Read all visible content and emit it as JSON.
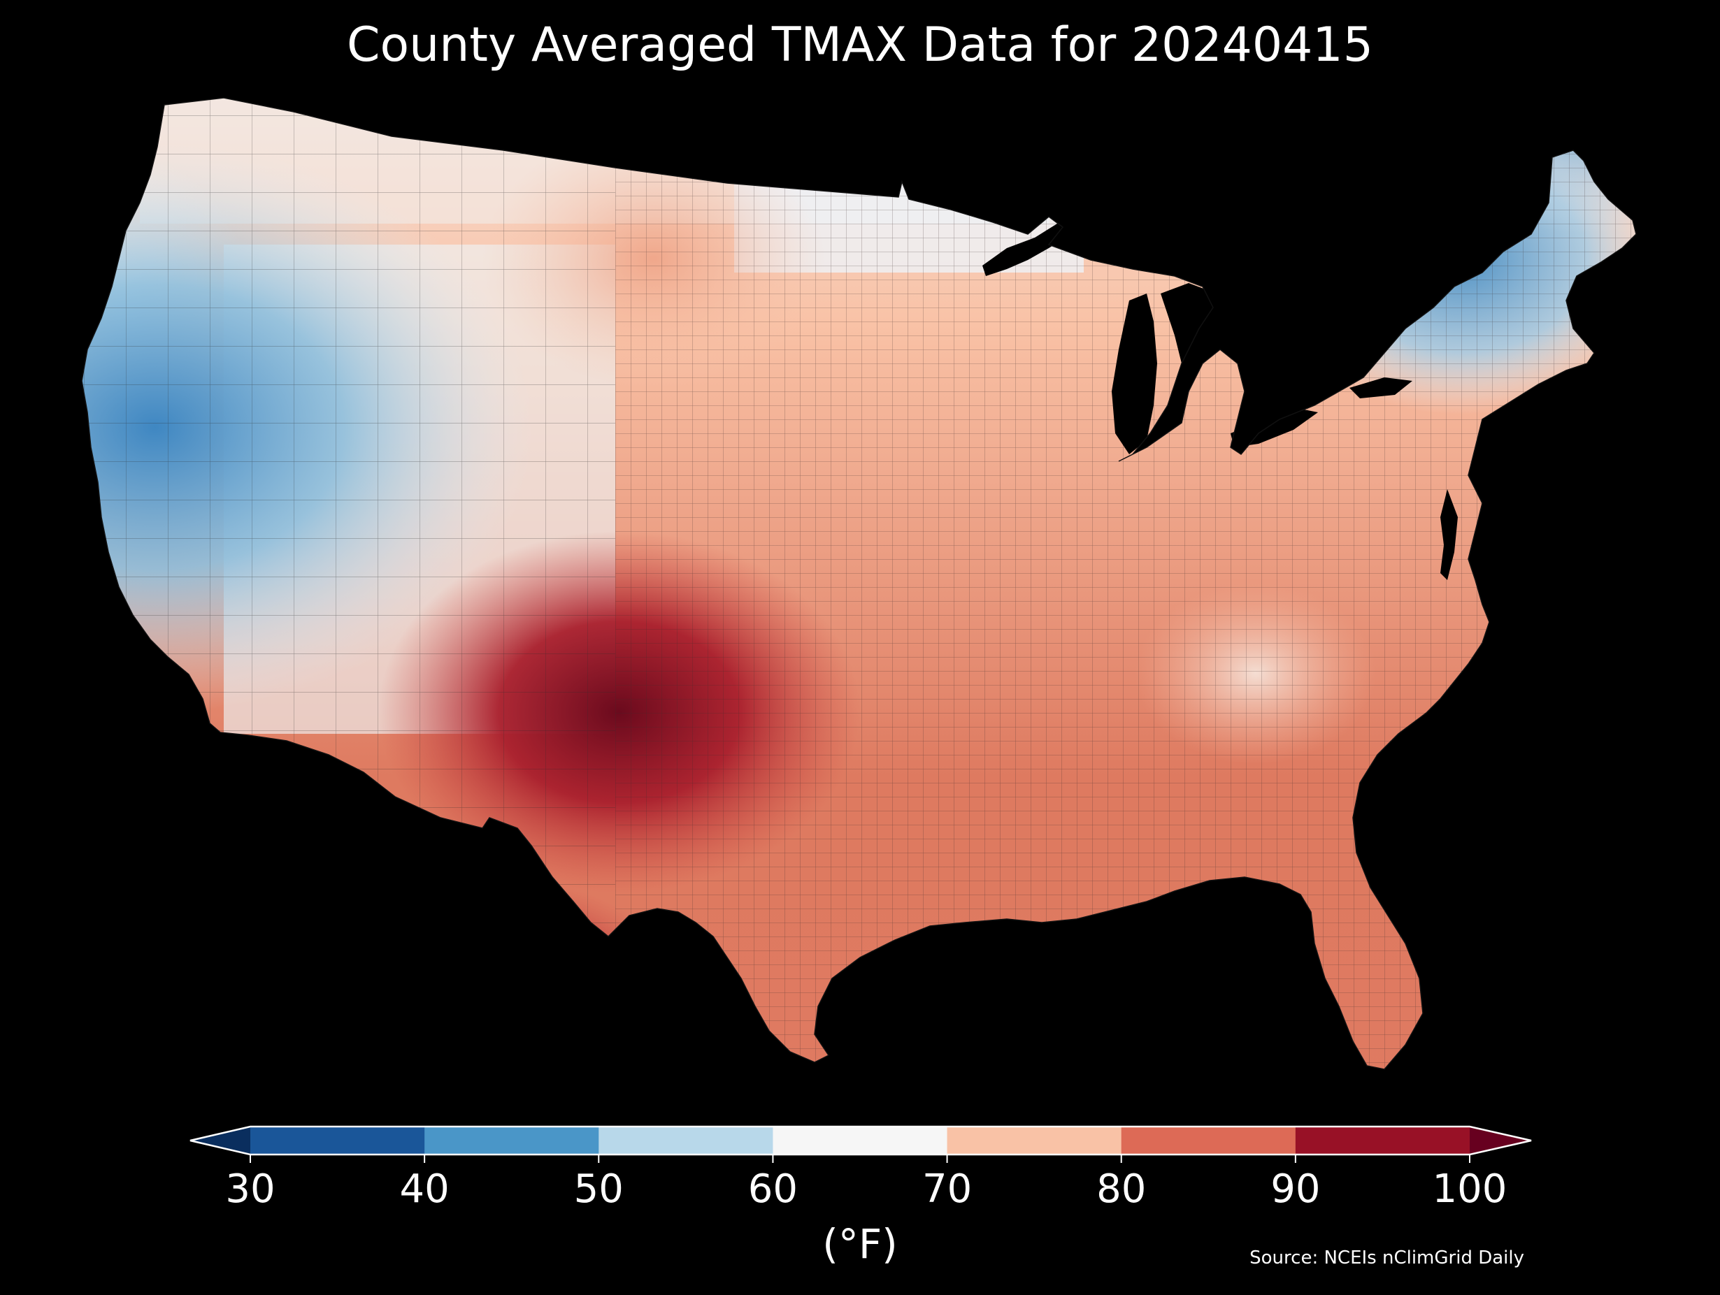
{
  "title": "County Averaged TMAX Data for 20240415",
  "colorbar": {
    "label": "(°F)",
    "extend": "both",
    "ticks": [
      "30",
      "40",
      "50",
      "60",
      "70",
      "80",
      "90",
      "100"
    ],
    "bins": [
      {
        "min": 30,
        "max": 40,
        "color": "#1a5699"
      },
      {
        "min": 40,
        "max": 50,
        "color": "#4a96c8"
      },
      {
        "min": 50,
        "max": 60,
        "color": "#b8d8ea"
      },
      {
        "min": 60,
        "max": 70,
        "color": "#f6f6f6"
      },
      {
        "min": 70,
        "max": 80,
        "color": "#f9c2a6"
      },
      {
        "min": 80,
        "max": 90,
        "color": "#dd6a56"
      },
      {
        "min": 90,
        "max": 100,
        "color": "#981126"
      }
    ],
    "under_color": "#0a2e5e",
    "over_color": "#67001f"
  },
  "source": "Source: NCEIs nClimGrid Daily",
  "map": {
    "region": "contiguous-united-states",
    "unit": "county",
    "variable": "TMAX",
    "background": "#000000",
    "border_color": "#333333"
  }
}
